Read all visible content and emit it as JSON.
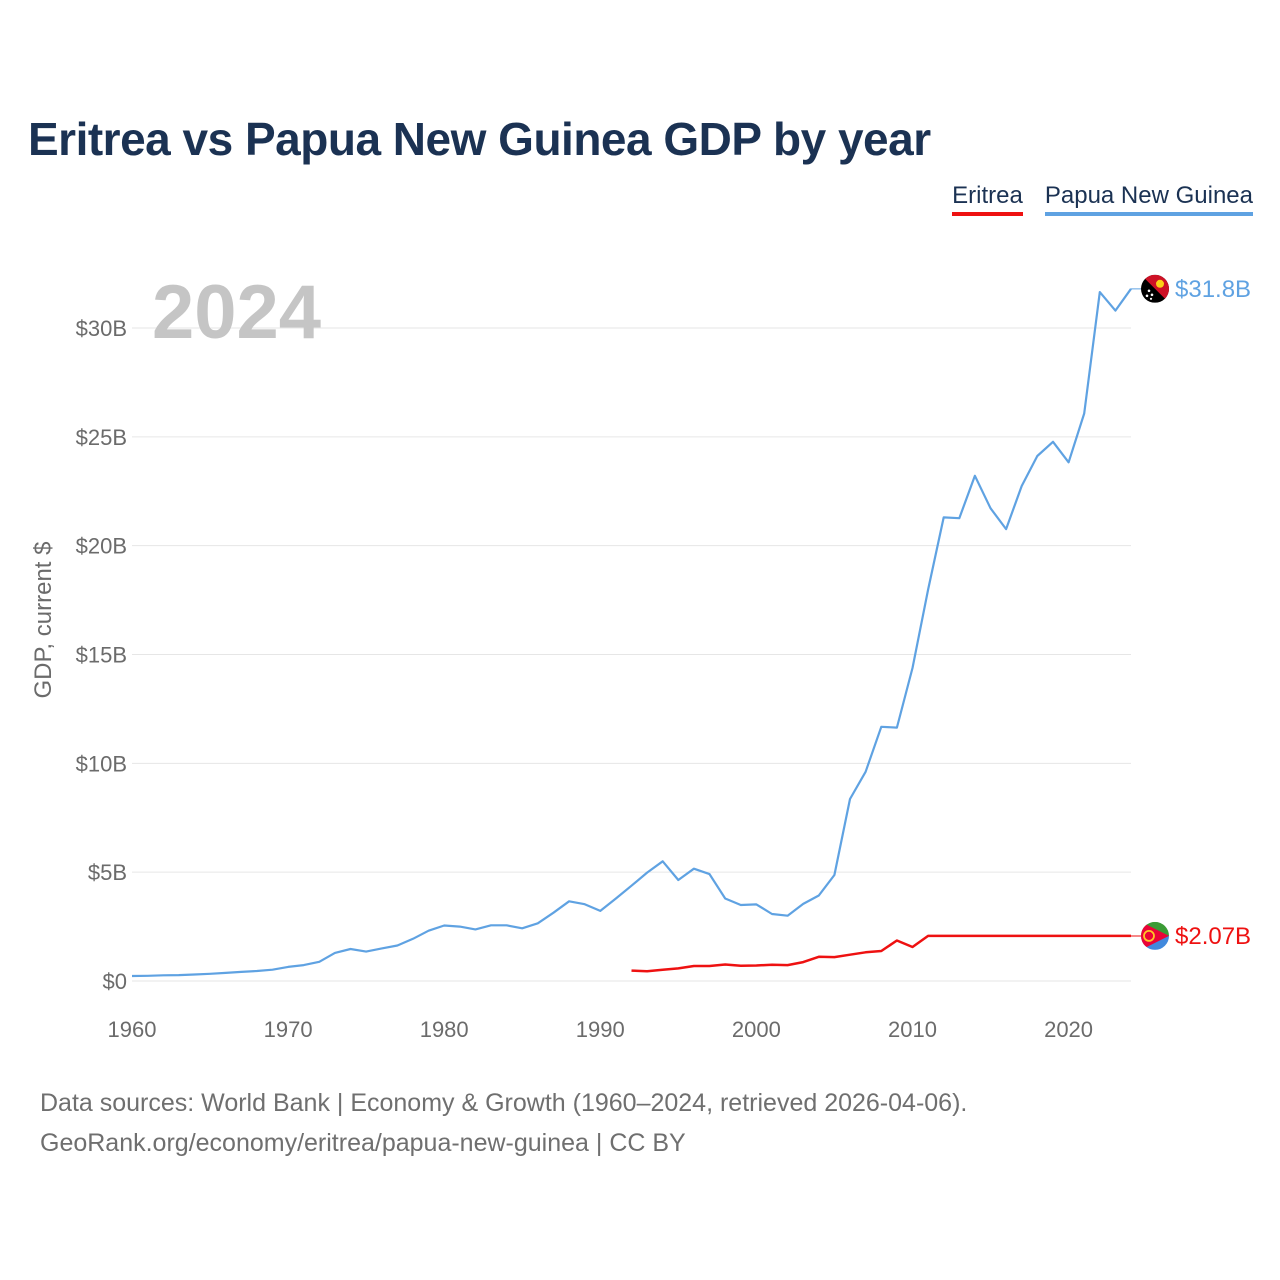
{
  "page": {
    "title": "Eritrea vs Papua New Guinea GDP by year",
    "year_overlay": "2024",
    "footer_line1": "Data sources: World Bank | Economy & Growth (1960–2024, retrieved 2026-04-06).",
    "footer_line2": "GeoRank.org/economy/eritrea/papua-new-guinea | CC BY"
  },
  "legend": [
    {
      "name": "Eritrea",
      "color": "#ee1111"
    },
    {
      "name": "Papua New Guinea",
      "color": "#5fa2e2"
    }
  ],
  "chart_data": {
    "type": "line",
    "title": "Eritrea vs Papua New Guinea GDP by year",
    "xlabel": "",
    "ylabel": "GDP, current $",
    "xlim": [
      1960,
      2024
    ],
    "ylim": [
      0,
      32.5
    ],
    "y_unit": "billion USD",
    "x_ticks": [
      1960,
      1970,
      1980,
      1990,
      2000,
      2010,
      2020
    ],
    "x_tick_labels": [
      "1960",
      "1970",
      "1980",
      "1990",
      "2000",
      "2010",
      "2020"
    ],
    "y_ticks": [
      0,
      5,
      10,
      15,
      20,
      25,
      30
    ],
    "y_tick_labels": [
      "$0",
      "$5B",
      "$10B",
      "$15B",
      "$20B",
      "$25B",
      "$30B"
    ],
    "grid": true,
    "legend_position": "top-right",
    "series": [
      {
        "name": "Eritrea",
        "color": "#ee1111",
        "end_label": "$2.07B",
        "x": [
          1992,
          1993,
          1994,
          1995,
          1996,
          1997,
          1998,
          1999,
          2000,
          2001,
          2002,
          2003,
          2004,
          2005,
          2006,
          2007,
          2008,
          2009,
          2010,
          2011,
          2024
        ],
        "values": [
          0.48,
          0.45,
          0.52,
          0.58,
          0.69,
          0.69,
          0.76,
          0.7,
          0.71,
          0.75,
          0.73,
          0.87,
          1.11,
          1.1,
          1.21,
          1.32,
          1.38,
          1.86,
          1.56,
          2.07,
          2.07
        ]
      },
      {
        "name": "Papua New Guinea",
        "color": "#5fa2e2",
        "end_label": "$31.8B",
        "x": [
          1960,
          1961,
          1962,
          1963,
          1964,
          1965,
          1966,
          1967,
          1968,
          1969,
          1970,
          1971,
          1972,
          1973,
          1974,
          1975,
          1976,
          1977,
          1978,
          1979,
          1980,
          1981,
          1982,
          1983,
          1984,
          1985,
          1986,
          1987,
          1988,
          1989,
          1990,
          1991,
          1992,
          1993,
          1994,
          1995,
          1996,
          1997,
          1998,
          1999,
          2000,
          2001,
          2002,
          2003,
          2004,
          2005,
          2006,
          2007,
          2008,
          2009,
          2010,
          2011,
          2012,
          2013,
          2014,
          2015,
          2016,
          2017,
          2018,
          2019,
          2020,
          2021,
          2022,
          2023,
          2024
        ],
        "values": [
          0.23,
          0.24,
          0.26,
          0.27,
          0.3,
          0.33,
          0.37,
          0.42,
          0.46,
          0.52,
          0.65,
          0.73,
          0.88,
          1.29,
          1.47,
          1.35,
          1.5,
          1.63,
          1.94,
          2.31,
          2.55,
          2.5,
          2.37,
          2.56,
          2.56,
          2.42,
          2.65,
          3.14,
          3.66,
          3.53,
          3.22,
          3.79,
          4.38,
          4.98,
          5.5,
          4.64,
          5.16,
          4.91,
          3.79,
          3.49,
          3.52,
          3.08,
          3.0,
          3.54,
          3.93,
          4.87,
          8.36,
          9.61,
          11.68,
          11.64,
          14.38,
          17.98,
          21.3,
          21.26,
          23.21,
          21.72,
          20.76,
          22.74,
          24.12,
          24.77,
          23.83,
          26.07,
          31.65,
          30.8,
          31.8
        ]
      }
    ]
  }
}
